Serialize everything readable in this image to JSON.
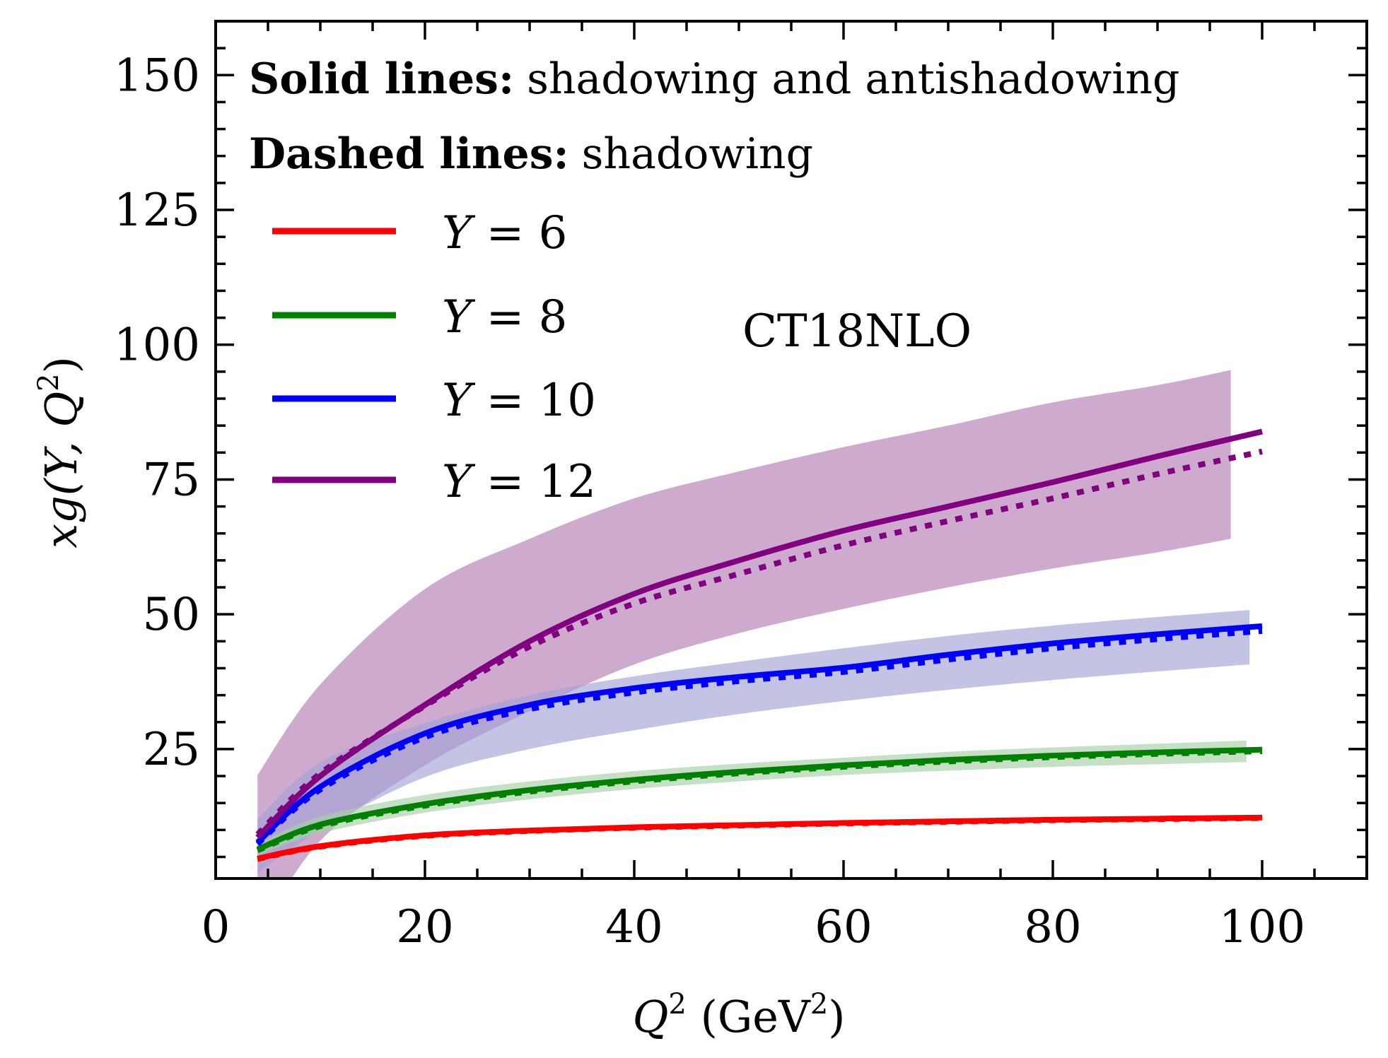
{
  "chart_data": {
    "type": "line",
    "title": "",
    "xlabel": "Q^2 (GeV^2)",
    "xlabel_parts": {
      "var": "Q",
      "sup": "2",
      "unit_open": " (GeV",
      "unit_sup": "2",
      "unit_close": ")"
    },
    "ylabel": "xg(Y, Q^2)",
    "ylabel_parts": {
      "pre": "xg(Y, Q",
      "sup": "2",
      "post": ")"
    },
    "xlim": [
      0,
      110
    ],
    "ylim": [
      1,
      160
    ],
    "xticks": [
      0,
      20,
      40,
      60,
      80,
      100
    ],
    "xtick_labels": [
      "0",
      "20",
      "40",
      "60",
      "80",
      "100"
    ],
    "xminor_step": 5,
    "yticks": [
      25,
      50,
      75,
      100,
      125,
      150
    ],
    "ytick_labels": [
      "25",
      "50",
      "75",
      "100",
      "125",
      "150"
    ],
    "yminor_step": 5,
    "grid": false,
    "annotations": {
      "line1_bold": "Solid lines:",
      "line1_text": "shadowing and antishadowing",
      "line2_bold": "Dashed lines:",
      "line2_text": "shadowing",
      "pdf_label": "CT18NLO"
    },
    "legend_position": "upper-left",
    "series": [
      {
        "name": "Y = 6",
        "legend_var": "Y",
        "legend_eq": " = 6",
        "color": "#ff0000",
        "band_color": "#f4a582",
        "x": [
          4,
          10,
          20,
          30,
          40,
          50,
          60,
          70,
          80,
          90,
          100
        ],
        "solid": [
          4.7,
          7.0,
          9.0,
          9.9,
          10.5,
          10.9,
          11.3,
          11.6,
          11.9,
          12.1,
          12.3
        ],
        "dashed": [
          4.6,
          6.9,
          8.9,
          9.8,
          10.4,
          10.8,
          11.2,
          11.5,
          11.8,
          12.0,
          12.2
        ],
        "band_x": [
          4,
          10,
          20,
          30,
          40,
          50,
          60,
          70,
          80,
          90,
          98.5
        ],
        "band_low": [
          4.3,
          6.5,
          8.5,
          9.4,
          10.0,
          10.4,
          10.8,
          11.1,
          11.4,
          11.6,
          11.8
        ],
        "band_high": [
          5.1,
          7.5,
          9.5,
          10.4,
          11.0,
          11.4,
          11.8,
          12.1,
          12.4,
          12.6,
          12.8
        ]
      },
      {
        "name": "Y = 8",
        "legend_var": "Y",
        "legend_eq": " = 8",
        "color": "#008000",
        "band_color": "#a6d0a6",
        "x": [
          4,
          10,
          20,
          30,
          40,
          50,
          60,
          70,
          80,
          90,
          100
        ],
        "solid": [
          6.4,
          11.0,
          14.8,
          17.4,
          19.3,
          20.8,
          22.0,
          23.0,
          23.8,
          24.4,
          24.9
        ],
        "dashed": [
          6.2,
          10.7,
          14.5,
          17.1,
          19.0,
          20.5,
          21.7,
          22.7,
          23.5,
          24.1,
          24.6
        ],
        "band_x": [
          4,
          10,
          20,
          30,
          40,
          50,
          60,
          70,
          80,
          90,
          98.5
        ],
        "band_low": [
          5.3,
          9.4,
          13.2,
          15.7,
          17.6,
          19.0,
          20.2,
          21.0,
          21.7,
          22.2,
          22.6
        ],
        "band_high": [
          7.4,
          12.5,
          16.5,
          19.0,
          20.9,
          22.3,
          23.4,
          24.5,
          25.3,
          26.0,
          26.6
        ]
      },
      {
        "name": "Y = 10",
        "legend_var": "Y",
        "legend_eq": " = 10",
        "color": "#0000ff",
        "band_color": "#a3a3d6",
        "x": [
          4,
          10,
          20,
          30,
          40,
          50,
          60,
          70,
          80,
          90,
          100
        ],
        "solid": [
          7.7,
          18.0,
          27.9,
          33.2,
          36.3,
          38.4,
          40.1,
          42.5,
          44.6,
          46.3,
          47.8
        ],
        "dashed": [
          7.4,
          17.5,
          27.2,
          32.4,
          35.5,
          37.6,
          39.3,
          41.6,
          43.7,
          45.4,
          46.9
        ],
        "band_x": [
          4,
          10,
          20,
          30,
          40,
          50,
          60,
          70,
          80,
          90,
          98.8
        ],
        "band_low": [
          2.0,
          10.0,
          19.8,
          25.0,
          28.5,
          31.5,
          33.9,
          36.0,
          37.8,
          39.4,
          40.7
        ],
        "band_high": [
          12.0,
          22.5,
          29.8,
          35.0,
          38.5,
          41.2,
          43.7,
          46.0,
          47.9,
          49.5,
          50.8
        ]
      },
      {
        "name": "Y = 12",
        "legend_var": "Y",
        "legend_eq": " = 12",
        "color": "#800080",
        "band_color": "#b47cb4",
        "x": [
          4,
          10,
          20,
          30,
          40,
          50,
          60,
          70,
          80,
          90,
          100
        ],
        "solid": [
          8.6,
          20.0,
          33.2,
          45.0,
          53.8,
          60.0,
          65.5,
          70.0,
          74.5,
          79.3,
          83.9
        ],
        "dashed": [
          9.2,
          20.5,
          33.0,
          44.0,
          52.0,
          57.5,
          62.8,
          67.3,
          71.5,
          76.0,
          80.2
        ],
        "band_x": [
          4,
          10,
          20,
          30,
          40,
          50,
          60,
          70,
          80,
          90,
          97
        ],
        "band_low": [
          -10.0,
          8.0,
          22.0,
          32.0,
          40.7,
          46.5,
          51.0,
          55.0,
          58.5,
          61.5,
          64.0
        ],
        "band_high": [
          20.2,
          37.0,
          54.7,
          64.0,
          71.5,
          76.5,
          81.0,
          85.0,
          89.3,
          92.5,
          95.3
        ]
      }
    ]
  }
}
